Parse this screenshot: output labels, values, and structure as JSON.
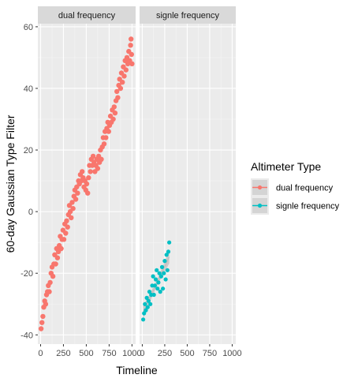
{
  "chart_data": {
    "type": "scatter",
    "xlabel": "Timeline",
    "ylabel": "60-day Gaussian Type Filter",
    "xlim": [
      -30,
      1040
    ],
    "ylim": [
      -43,
      61
    ],
    "x_ticks": [
      0,
      250,
      500,
      750,
      1000
    ],
    "y_ticks": [
      -40,
      -20,
      0,
      20,
      40,
      60
    ],
    "grid": true,
    "facets": [
      "dual frequency",
      "signle frequency"
    ],
    "legend": {
      "title": "Altimeter Type",
      "position": "right",
      "entries": [
        "dual frequency",
        "signle frequency"
      ]
    },
    "series": [
      {
        "name": "dual frequency",
        "facet": "dual frequency",
        "color": "#F8766D",
        "trend": "increasing, dense band from about -38 at x=0 to about 56 at x=990",
        "points": [
          [
            5,
            -38
          ],
          [
            15,
            -36
          ],
          [
            25,
            -34
          ],
          [
            35,
            -31
          ],
          [
            45,
            -29
          ],
          [
            55,
            -30
          ],
          [
            65,
            -27
          ],
          [
            75,
            -26
          ],
          [
            85,
            -24
          ],
          [
            95,
            -26
          ],
          [
            105,
            -23
          ],
          [
            115,
            -20
          ],
          [
            125,
            -18
          ],
          [
            135,
            -21
          ],
          [
            145,
            -17
          ],
          [
            155,
            -14
          ],
          [
            165,
            -17
          ],
          [
            175,
            -12
          ],
          [
            185,
            -15
          ],
          [
            195,
            -13
          ],
          [
            205,
            -11
          ],
          [
            215,
            -8
          ],
          [
            225,
            -12
          ],
          [
            235,
            -9
          ],
          [
            245,
            -6
          ],
          [
            255,
            -9
          ],
          [
            265,
            -4
          ],
          [
            275,
            -7
          ],
          [
            285,
            -3
          ],
          [
            295,
            -5
          ],
          [
            305,
            -1
          ],
          [
            315,
            2
          ],
          [
            325,
            0
          ],
          [
            335,
            -2
          ],
          [
            345,
            3
          ],
          [
            355,
            1
          ],
          [
            365,
            5
          ],
          [
            375,
            7
          ],
          [
            385,
            4
          ],
          [
            395,
            8
          ],
          [
            405,
            6
          ],
          [
            415,
            10
          ],
          [
            425,
            9
          ],
          [
            435,
            12
          ],
          [
            445,
            10
          ],
          [
            455,
            13
          ],
          [
            465,
            11
          ],
          [
            475,
            8
          ],
          [
            485,
            10
          ],
          [
            495,
            7
          ],
          [
            505,
            9
          ],
          [
            515,
            6
          ],
          [
            525,
            11
          ],
          [
            535,
            15
          ],
          [
            545,
            13
          ],
          [
            555,
            17
          ],
          [
            565,
            15
          ],
          [
            575,
            18
          ],
          [
            585,
            16
          ],
          [
            595,
            13
          ],
          [
            605,
            15
          ],
          [
            615,
            17
          ],
          [
            625,
            14
          ],
          [
            635,
            18
          ],
          [
            645,
            16
          ],
          [
            655,
            20
          ],
          [
            665,
            17
          ],
          [
            675,
            21
          ],
          [
            685,
            24
          ],
          [
            695,
            22
          ],
          [
            705,
            26
          ],
          [
            715,
            24
          ],
          [
            725,
            27
          ],
          [
            735,
            29
          ],
          [
            745,
            26
          ],
          [
            755,
            28
          ],
          [
            765,
            31
          ],
          [
            775,
            29
          ],
          [
            785,
            33
          ],
          [
            795,
            30
          ],
          [
            805,
            34
          ],
          [
            815,
            32
          ],
          [
            825,
            36
          ],
          [
            835,
            39
          ],
          [
            845,
            37
          ],
          [
            855,
            41
          ],
          [
            865,
            43
          ],
          [
            875,
            40
          ],
          [
            885,
            45
          ],
          [
            895,
            42
          ],
          [
            905,
            47
          ],
          [
            915,
            44
          ],
          [
            925,
            49
          ],
          [
            935,
            46
          ],
          [
            945,
            50
          ],
          [
            955,
            48
          ],
          [
            965,
            52
          ],
          [
            975,
            49
          ],
          [
            985,
            54
          ],
          [
            990,
            56
          ],
          [
            995,
            51
          ],
          [
            1000,
            48
          ]
        ]
      },
      {
        "name": "signle frequency",
        "facet": "signle frequency",
        "color": "#00BFC4",
        "trend": "increasing, from about -35 at x=10 to about -10 at x=300, with grey confidence band",
        "points": [
          [
            10,
            -35
          ],
          [
            20,
            -33
          ],
          [
            30,
            -30
          ],
          [
            40,
            -32
          ],
          [
            50,
            -28
          ],
          [
            60,
            -31
          ],
          [
            70,
            -29
          ],
          [
            80,
            -26
          ],
          [
            90,
            -30
          ],
          [
            100,
            -27
          ],
          [
            110,
            -24
          ],
          [
            120,
            -21
          ],
          [
            130,
            -27
          ],
          [
            140,
            -24
          ],
          [
            150,
            -22
          ],
          [
            160,
            -19
          ],
          [
            170,
            -25
          ],
          [
            180,
            -23
          ],
          [
            190,
            -20
          ],
          [
            200,
            -26
          ],
          [
            210,
            -21
          ],
          [
            220,
            -18
          ],
          [
            230,
            -25
          ],
          [
            240,
            -20
          ],
          [
            250,
            -16
          ],
          [
            260,
            -22
          ],
          [
            270,
            -14
          ],
          [
            280,
            -19
          ],
          [
            290,
            -13
          ],
          [
            300,
            -10
          ]
        ]
      }
    ]
  }
}
